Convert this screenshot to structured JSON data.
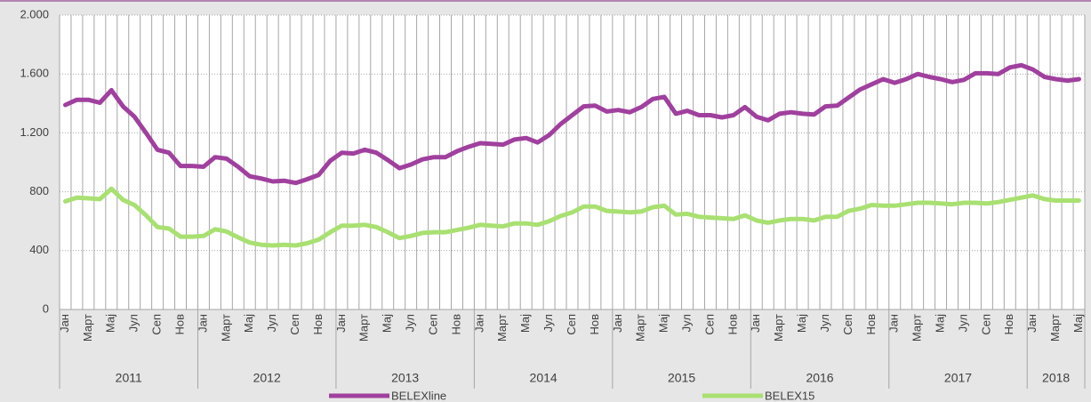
{
  "chart_data": {
    "type": "line",
    "categories": [
      "Јан",
      null,
      "Март",
      null,
      "Мај",
      null,
      "Јул",
      null,
      "Сеп",
      null,
      "Нов",
      null,
      "Јан",
      null,
      "Март",
      null,
      "Мај",
      null,
      "Јул",
      null,
      "Сеп",
      null,
      "Нов",
      null,
      "Јан",
      null,
      "Март",
      null,
      "Мај",
      null,
      "Јул",
      null,
      "Сеп",
      null,
      "Нов",
      null,
      "Јан",
      null,
      "Март",
      null,
      "Мај",
      null,
      "Јул",
      null,
      "Сеп",
      null,
      "Нов",
      null,
      "Јан",
      null,
      "Март",
      null,
      "Мај",
      null,
      "Јул",
      null,
      "Сеп",
      null,
      "Нов",
      null,
      "Јан",
      null,
      "Март",
      null,
      "Мај",
      null,
      "Јул",
      null,
      "Сеп",
      null,
      "Нов",
      null,
      "Јан",
      null,
      "Март",
      null,
      "Мај",
      null,
      "Јул",
      null,
      "Сеп",
      null,
      "Нов",
      null,
      "Јан",
      null,
      "Март",
      null,
      "Мај"
    ],
    "years": [
      "2011",
      "2012",
      "2013",
      "2014",
      "2015",
      "2016",
      "2017",
      "2018"
    ],
    "series": [
      {
        "name": "BELEXline",
        "color": "#a0409e",
        "values": [
          1390,
          1425,
          1425,
          1405,
          1490,
          1380,
          1310,
          1200,
          1085,
          1065,
          975,
          975,
          970,
          1035,
          1025,
          970,
          905,
          890,
          870,
          875,
          860,
          885,
          915,
          1010,
          1065,
          1060,
          1085,
          1065,
          1015,
          960,
          985,
          1020,
          1035,
          1035,
          1075,
          1105,
          1130,
          1125,
          1120,
          1155,
          1165,
          1135,
          1185,
          1260,
          1320,
          1380,
          1385,
          1345,
          1355,
          1340,
          1375,
          1430,
          1445,
          1330,
          1350,
          1320,
          1320,
          1305,
          1320,
          1375,
          1310,
          1285,
          1330,
          1340,
          1330,
          1325,
          1380,
          1385,
          1440,
          1495,
          1530,
          1565,
          1540,
          1565,
          1600,
          1580,
          1565,
          1545,
          1560,
          1605,
          1605,
          1600,
          1645,
          1660,
          1630,
          1580,
          1565,
          1555,
          1565
        ]
      },
      {
        "name": "BELEX15",
        "color": "#a9e072",
        "values": [
          735,
          760,
          755,
          750,
          820,
          745,
          710,
          640,
          560,
          550,
          495,
          495,
          500,
          545,
          530,
          490,
          455,
          440,
          435,
          440,
          435,
          450,
          475,
          525,
          570,
          570,
          575,
          560,
          525,
          485,
          500,
          520,
          525,
          525,
          540,
          555,
          575,
          570,
          565,
          585,
          585,
          575,
          600,
          635,
          660,
          700,
          700,
          670,
          665,
          660,
          665,
          695,
          705,
          645,
          650,
          630,
          625,
          620,
          615,
          640,
          605,
          590,
          605,
          615,
          615,
          605,
          630,
          630,
          670,
          685,
          710,
          705,
          705,
          715,
          725,
          725,
          720,
          715,
          725,
          725,
          720,
          730,
          745,
          760,
          775,
          750,
          740,
          740,
          740
        ]
      }
    ],
    "ylim": [
      0,
      2000
    ],
    "yticks": [
      0,
      400,
      800,
      {
        "value": 1200,
        "label": "1.200"
      },
      {
        "value": 1600,
        "label": "1.600"
      },
      {
        "value": 2000,
        "label": "2.000"
      }
    ],
    "grid": true
  }
}
